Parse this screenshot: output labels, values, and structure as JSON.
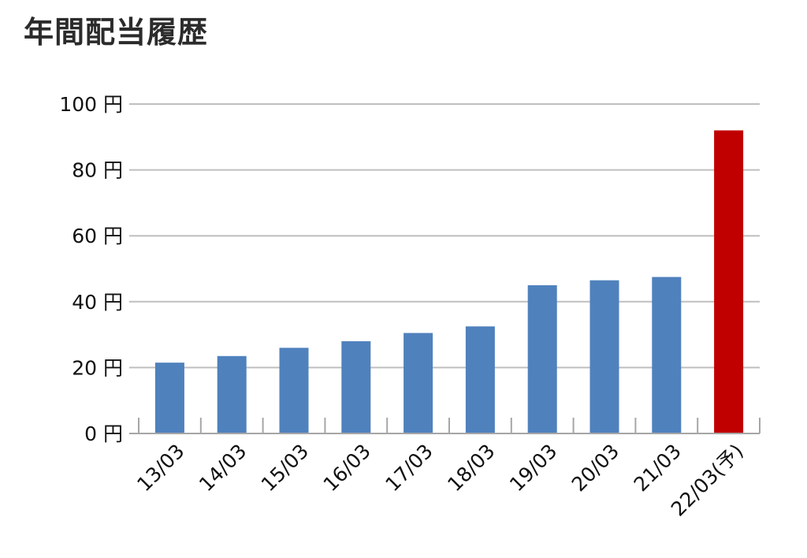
{
  "title": "年間配当履歴",
  "chart_data": {
    "type": "bar",
    "title": "年間配当履歴",
    "xlabel": "",
    "ylabel": "",
    "categories": [
      "13/03",
      "14/03",
      "15/03",
      "16/03",
      "17/03",
      "18/03",
      "19/03",
      "20/03",
      "21/03",
      "22/03(予)"
    ],
    "values": [
      21.5,
      23.5,
      26,
      28,
      30.5,
      32.5,
      45,
      46.5,
      47.5,
      92
    ],
    "ylim": [
      0,
      100
    ],
    "yticks": [
      0,
      20,
      40,
      60,
      80,
      100
    ],
    "ytick_labels": [
      "0 円",
      "20 円",
      "40 円",
      "60 円",
      "80 円",
      "100 円"
    ],
    "grid": true,
    "legend": "none",
    "colors": {
      "bar": "#4f81bd",
      "highlight": "#c00000",
      "grid": "#bfbfbf",
      "axis": "#a6a6a6"
    },
    "highlight_index": 9
  }
}
